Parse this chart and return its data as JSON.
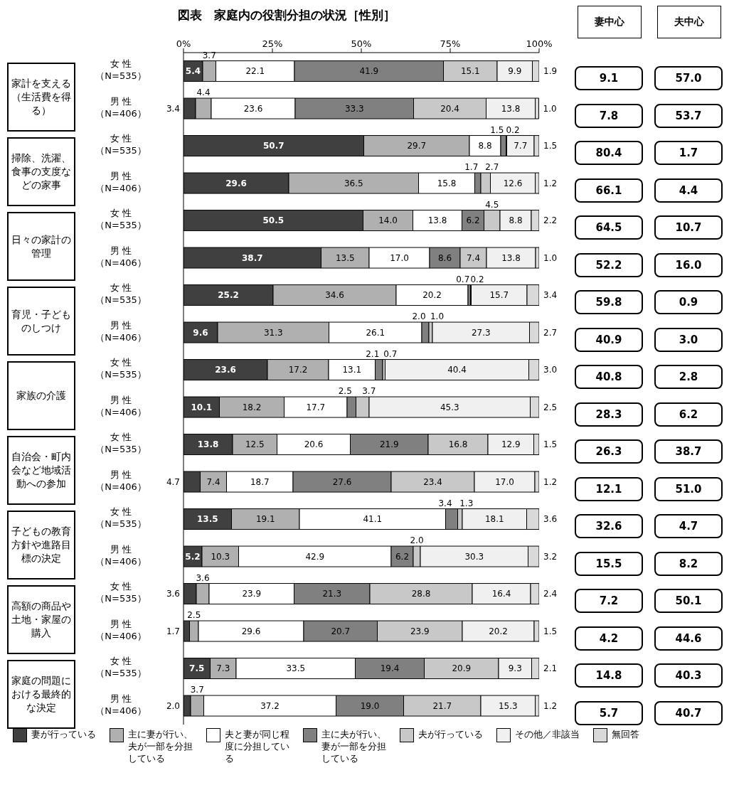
{
  "chart_data": [
    {
      "type": "bar",
      "orientation": "horizontal",
      "stacked": true,
      "title": "図表　家庭内の役割分担の状況［性別］",
      "categories": [
        "女 性（N=535）",
        "男 性（N=406）",
        "女 性（N=535）",
        "男 性（N=406）",
        "女 性（N=535）",
        "男 性（N=406）",
        "女 性（N=535）",
        "男 性（N=406）",
        "女 性（N=535）",
        "男 性（N=406）",
        "女 性（N=535）",
        "男 性（N=406）",
        "女 性（N=535）",
        "男 性（N=406）",
        "女 性（N=535）",
        "男 性（N=406）",
        "女 性（N=535）",
        "男 性（N=406）"
      ],
      "series": [
        {
          "name": "妻が行っている",
          "color": "#404040",
          "values": [
            5.4,
            3.4,
            50.7,
            29.6,
            50.5,
            38.7,
            25.2,
            9.6,
            23.6,
            10.1,
            13.8,
            4.7,
            13.5,
            5.2,
            3.6,
            1.7,
            7.5,
            2.0
          ],
          "value_labels": [
            "5.4",
            "3.4",
            "50.7",
            "29.6",
            "50.5",
            "38.7",
            "25.2",
            "9.6",
            "23.6",
            "10.1",
            "13.8",
            "4.7",
            "13.5",
            "5.2",
            "3.6",
            "1.7",
            "7.5",
            "2.0"
          ]
        },
        {
          "name": "主に妻が行い、夫が一部を分担している",
          "color": "#b0b0b0",
          "values": [
            3.7,
            4.4,
            29.7,
            36.5,
            14.0,
            13.5,
            34.6,
            31.3,
            17.2,
            18.2,
            12.5,
            7.4,
            19.1,
            10.3,
            3.6,
            2.5,
            7.3,
            3.7
          ],
          "value_labels": [
            "3.7",
            "4.4",
            "29.7",
            "36.5",
            "14.0",
            "13.5",
            "34.6",
            "31.3",
            "17.2",
            "18.2",
            "12.5",
            "7.4",
            "19.1",
            "10.3",
            "3.6",
            "2.5",
            "7.3",
            "3.7"
          ]
        },
        {
          "name": "夫と妻が同じ程度に分担している",
          "color": "#ffffff",
          "values": [
            22.1,
            23.6,
            8.8,
            15.8,
            13.8,
            17.0,
            20.2,
            26.1,
            13.1,
            17.7,
            20.6,
            18.7,
            41.1,
            42.9,
            23.9,
            29.6,
            33.5,
            37.2
          ],
          "value_labels": [
            "22.1",
            "23.6",
            "8.8",
            "15.8",
            "13.8",
            "17.0",
            "20.2",
            "26.1",
            "13.1",
            "17.7",
            "20.6",
            "18.7",
            "41.1",
            "42.9",
            "23.9",
            "29.6",
            "33.5",
            "37.2"
          ]
        },
        {
          "name": "主に夫が行い、妻が一部を分担している",
          "color": "#808080",
          "values": [
            41.9,
            33.3,
            1.5,
            1.7,
            6.2,
            8.6,
            0.7,
            2.0,
            2.1,
            2.5,
            21.9,
            27.6,
            3.4,
            6.2,
            21.3,
            20.7,
            19.4,
            19.0
          ],
          "value_labels": [
            "41.9",
            "33.3",
            "1.5",
            "1.7",
            "6.2",
            "8.6",
            "0.7",
            "2.0",
            "2.1",
            "2.5",
            "21.9",
            "27.6",
            "3.4",
            "6.2",
            "21.3",
            "20.7",
            "19.4",
            "19.0"
          ]
        },
        {
          "name": "夫が行っている",
          "color": "#c8c8c8",
          "values": [
            15.1,
            20.4,
            0.2,
            2.7,
            4.5,
            7.4,
            0.2,
            1.0,
            0.7,
            3.7,
            16.8,
            23.4,
            1.3,
            2.0,
            28.8,
            23.9,
            20.9,
            21.7
          ],
          "value_labels": [
            "15.1",
            "20.4",
            "0.2",
            "2.7",
            "4.5",
            "7.4",
            "0.2",
            "1.0",
            "0.7",
            "3.7",
            "16.8",
            "23.4",
            "1.3",
            "2.0",
            "28.8",
            "23.9",
            "20.9",
            "21.7"
          ]
        },
        {
          "name": "その他／非該当",
          "color": "#f0f0f0",
          "values": [
            9.9,
            13.8,
            7.7,
            12.6,
            8.8,
            13.8,
            15.7,
            27.3,
            40.4,
            45.3,
            12.9,
            17.0,
            18.1,
            30.3,
            16.4,
            20.2,
            9.3,
            15.3
          ],
          "value_labels": [
            "9.9",
            "13.8",
            "7.7",
            "12.6",
            "8.8",
            "13.8",
            "15.7",
            "27.3",
            "40.4",
            "45.3",
            "12.9",
            "17.0",
            "18.1",
            "30.3",
            "16.4",
            "20.2",
            "9.3",
            "15.3"
          ]
        },
        {
          "name": "無回答",
          "color": "#d9d9d9",
          "values": [
            1.9,
            1.0,
            1.5,
            1.2,
            2.2,
            1.0,
            3.4,
            2.7,
            3.0,
            2.5,
            1.5,
            1.2,
            3.6,
            3.2,
            2.4,
            1.5,
            2.1,
            1.2
          ],
          "value_labels": [
            "1.9",
            "1.0",
            "1.5",
            "1.2",
            "2.2",
            "1.0",
            "3.4",
            "2.7",
            "3.0",
            "2.5",
            "1.5",
            "1.2",
            "3.6",
            "3.2",
            "2.4",
            "1.5",
            "2.1",
            "1.2"
          ]
        }
      ],
      "xlim": [
        0,
        100
      ],
      "xticks": [
        {
          "value": 0,
          "label": "0%"
        },
        {
          "value": 25,
          "label": "25%"
        },
        {
          "value": 50,
          "label": "50%"
        },
        {
          "value": 75,
          "label": "75%"
        },
        {
          "value": 100,
          "label": "100%"
        }
      ],
      "legend": "bottom",
      "annotations": [
        "家計を支える（生活費を得る）",
        "掃除、洗濯、食事の支度などの家事",
        "日々の家計の管理",
        "育児・子どものしつけ",
        "家族の介護",
        "自治会・町内会など地域活動への参加",
        "子どもの教育方針や進路目標の決定",
        "高額の商品や土地・家屋の購入",
        "家庭の問題における最終的な決定"
      ]
    },
    {
      "type": "other",
      "annotations": [
        "妻中心",
        "夫中心",
        "9.1",
        "57.0",
        "7.8",
        "53.7",
        "80.4",
        "1.7",
        "66.1",
        "4.4",
        "64.5",
        "10.7",
        "52.2",
        "16.0",
        "59.8",
        "0.9",
        "40.9",
        "3.0",
        "40.8",
        "2.8",
        "28.3",
        "6.2",
        "26.3",
        "38.7",
        "12.1",
        "51.0",
        "32.6",
        "4.7",
        "15.5",
        "8.2",
        "7.2",
        "50.1",
        "4.2",
        "44.6",
        "14.8",
        "40.3",
        "5.7",
        "40.7"
      ]
    }
  ]
}
